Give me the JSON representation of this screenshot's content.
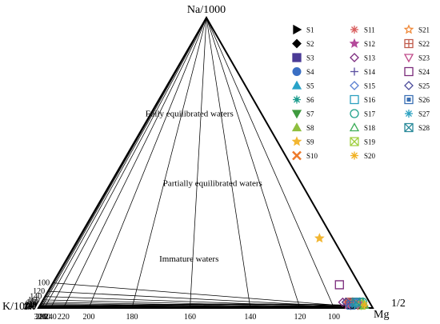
{
  "chart_data": {
    "type": "scatter",
    "subtype": "ternary",
    "corner_labels": {
      "top": "Na/1000",
      "left": "K/100",
      "right": "Mg",
      "right_superscript": "1/2"
    },
    "zone_labels": [
      {
        "text": "Fully equilibrated waters",
        "t": 0.66,
        "k": 0.22
      },
      {
        "text": "Partially equilibrated waters",
        "t": 0.42,
        "k": 0.27
      },
      {
        "text": "Immature waters",
        "t": 0.16,
        "k": 0.47
      }
    ],
    "left_edge_ticks": [
      "100",
      "120",
      "140",
      "160",
      "180",
      "200",
      "220",
      "240",
      "260",
      "280",
      "300",
      "320",
      "340"
    ],
    "bottom_edge_ticks": [
      "300",
      "280",
      "260",
      "240",
      "220",
      "200",
      "180",
      "160",
      "140",
      "120",
      "100"
    ],
    "na_k_isotherm_ticks": [
      100,
      120,
      140,
      160,
      180,
      200,
      220,
      240,
      260,
      280,
      300,
      320,
      340
    ],
    "k_mg_isotherm_ticks": [
      100,
      120,
      140,
      160,
      180,
      200,
      220,
      240,
      260,
      280,
      300
    ],
    "legend_placement": "right",
    "series": [
      {
        "name": "S1",
        "marker": "triangle-right",
        "color": "#000000",
        "filled": true,
        "t": 0.01,
        "k": 0.05
      },
      {
        "name": "S2",
        "marker": "diamond",
        "color": "#000000",
        "filled": true,
        "t": 0.01,
        "k": 0.06
      },
      {
        "name": "S3",
        "marker": "square",
        "color": "#4b3b96",
        "filled": true,
        "t": 0.02,
        "k": 0.05
      },
      {
        "name": "S4",
        "marker": "circle",
        "color": "#3a6fc4",
        "filled": true,
        "t": 0.02,
        "k": 0.04
      },
      {
        "name": "S5",
        "marker": "triangle-up",
        "color": "#29a3c9",
        "filled": true,
        "t": 0.02,
        "k": 0.03
      },
      {
        "name": "S6",
        "marker": "star-burst",
        "color": "#1f9d8f",
        "filled": true,
        "t": 0.01,
        "k": 0.04
      },
      {
        "name": "S7",
        "marker": "triangle-down",
        "color": "#3f9a3f",
        "filled": true,
        "t": 0.01,
        "k": 0.03
      },
      {
        "name": "S8",
        "marker": "triangle-up",
        "color": "#8fbf3f",
        "filled": true,
        "t": 0.02,
        "k": 0.02
      },
      {
        "name": "S9",
        "marker": "star",
        "color": "#f2b632",
        "filled": true,
        "t": 0.24,
        "k": 0.04
      },
      {
        "name": "S10",
        "marker": "x",
        "color": "#ee7a2a",
        "filled": false,
        "t": 0.02,
        "k": 0.06
      },
      {
        "name": "S11",
        "marker": "asterisk",
        "color": "#d95d5d",
        "filled": false,
        "t": 0.02,
        "k": 0.07
      },
      {
        "name": "S12",
        "marker": "star",
        "color": "#b44a9b",
        "filled": true,
        "t": 0.01,
        "k": 0.07
      },
      {
        "name": "S13",
        "marker": "diamond-open",
        "color": "#7c2a7e",
        "filled": false,
        "t": 0.02,
        "k": 0.08
      },
      {
        "name": "S14",
        "marker": "plus",
        "color": "#5a4fa0",
        "filled": false,
        "t": 0.01,
        "k": 0.05
      },
      {
        "name": "S15",
        "marker": "diamond-open",
        "color": "#5a7fd1",
        "filled": false,
        "t": 0.02,
        "k": 0.04
      },
      {
        "name": "S16",
        "marker": "square-open",
        "color": "#2a9fbf",
        "filled": false,
        "t": 0.02,
        "k": 0.03
      },
      {
        "name": "S17",
        "marker": "circle-open",
        "color": "#1fa08a",
        "filled": false,
        "t": 0.02,
        "k": 0.02
      },
      {
        "name": "S18",
        "marker": "triangle-up-open",
        "color": "#3fae5a",
        "filled": false,
        "t": 0.01,
        "k": 0.02
      },
      {
        "name": "S19",
        "marker": "square-x",
        "color": "#9fcf3f",
        "filled": false,
        "t": 0.01,
        "k": 0.03
      },
      {
        "name": "S20",
        "marker": "asterisk",
        "color": "#f0b020",
        "filled": false,
        "t": 0.01,
        "k": 0.02
      },
      {
        "name": "S21",
        "marker": "star-open",
        "color": "#f08a3a",
        "filled": false,
        "t": 0.02,
        "k": 0.05
      },
      {
        "name": "S22",
        "marker": "square-grid",
        "color": "#c05a4a",
        "filled": false,
        "t": 0.02,
        "k": 0.06
      },
      {
        "name": "S23",
        "marker": "triangle-down-open",
        "color": "#c04a8a",
        "filled": false,
        "t": 0.01,
        "k": 0.04
      },
      {
        "name": "S24",
        "marker": "square-open",
        "color": "#7a2a7a",
        "filled": false,
        "t": 0.08,
        "k": 0.06
      },
      {
        "name": "S25",
        "marker": "diamond-open",
        "color": "#4a4a9a",
        "filled": false,
        "t": 0.02,
        "k": 0.07
      },
      {
        "name": "S26",
        "marker": "square-dot",
        "color": "#3a6fb4",
        "filled": false,
        "t": 0.01,
        "k": 0.06
      },
      {
        "name": "S27",
        "marker": "asterisk",
        "color": "#2aa0c0",
        "filled": false,
        "t": 0.01,
        "k": 0.05
      },
      {
        "name": "S28",
        "marker": "square-x",
        "color": "#2a8a9a",
        "filled": false,
        "t": 0.02,
        "k": 0.04
      }
    ]
  }
}
